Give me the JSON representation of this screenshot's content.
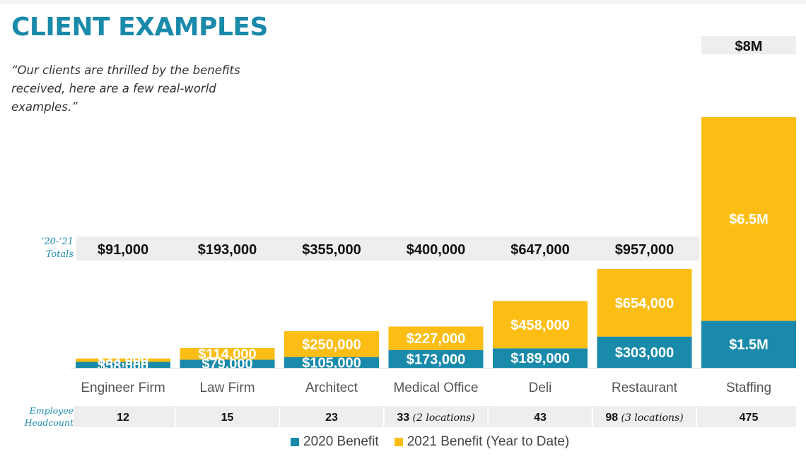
{
  "header": {
    "title": "CLIENT EXAMPLES",
    "quote": "“Our clients are thrilled by the benefits received, here are a few real-world examples.”"
  },
  "labels": {
    "totals_label": "‘20-’21 Totals",
    "headcount_label": "Employee Headcount"
  },
  "colors": {
    "benefit_2020": "#1a8aab",
    "benefit_2021": "#fcbe14",
    "band": "#eeeeee",
    "title": "#1a8aab"
  },
  "chart_data": {
    "type": "bar",
    "stacked": true,
    "categories": [
      "Engineer Firm",
      "Law Firm",
      "Architect",
      "Medical Office",
      "Deli",
      "Restaurant",
      "Staffing"
    ],
    "series": [
      {
        "name": "2020 Benefit",
        "values": [
          58000,
          79000,
          105000,
          173000,
          189000,
          303000,
          1500000
        ],
        "labels": [
          "$58,000",
          "$79,000",
          "$105,000",
          "$173,000",
          "$189,000",
          "$303,000",
          "$1.5M"
        ]
      },
      {
        "name": "2021 Benefit (Year to Date)",
        "values": [
          33000,
          114000,
          250000,
          227000,
          458000,
          654000,
          6500000
        ],
        "labels": [
          "$33,000",
          "$114,000",
          "$250,000",
          "$227,000",
          "$458,000",
          "$654,000",
          "$6.5M"
        ]
      }
    ],
    "totals": [
      "$91,000",
      "$193,000",
      "$355,000",
      "$400,000",
      "$647,000",
      "$957,000",
      "$8M"
    ],
    "headcount": [
      {
        "count": "12",
        "note": ""
      },
      {
        "count": "15",
        "note": ""
      },
      {
        "count": "23",
        "note": ""
      },
      {
        "count": "33",
        "note": "(2 locations)"
      },
      {
        "count": "43",
        "note": ""
      },
      {
        "count": "98",
        "note": "(3 locations)"
      },
      {
        "count": "475",
        "note": ""
      }
    ],
    "legend_position": "bottom",
    "grid": false
  }
}
